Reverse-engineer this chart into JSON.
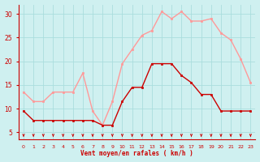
{
  "x": [
    0,
    1,
    2,
    3,
    4,
    5,
    6,
    7,
    8,
    9,
    10,
    11,
    12,
    13,
    14,
    15,
    16,
    17,
    18,
    19,
    20,
    21,
    22,
    23
  ],
  "wind_mean": [
    9.5,
    7.5,
    7.5,
    7.5,
    7.5,
    7.5,
    7.5,
    7.5,
    6.5,
    6.5,
    11.5,
    14.5,
    14.5,
    19.5,
    19.5,
    19.5,
    17.0,
    15.5,
    13.0,
    13.0,
    9.5,
    9.5,
    9.5,
    9.5
  ],
  "wind_gust": [
    13.5,
    11.5,
    11.5,
    13.5,
    13.5,
    13.5,
    17.5,
    9.5,
    6.5,
    11.5,
    19.5,
    22.5,
    25.5,
    26.5,
    30.5,
    29.0,
    30.5,
    28.5,
    28.5,
    29.0,
    26.0,
    24.5,
    20.5,
    15.5
  ],
  "mean_color": "#cc0000",
  "gust_color": "#ff9999",
  "bg_color": "#cff0f0",
  "grid_color": "#aadddd",
  "xlabel": "Vent moyen/en rafales ( km/h )",
  "ylabel_ticks": [
    5,
    10,
    15,
    20,
    25,
    30
  ],
  "ylim": [
    3.5,
    32
  ],
  "xlim": [
    -0.5,
    23.5
  ],
  "arrow_color": "#cc0000",
  "axis_color": "#cc0000",
  "tick_color": "#cc0000"
}
